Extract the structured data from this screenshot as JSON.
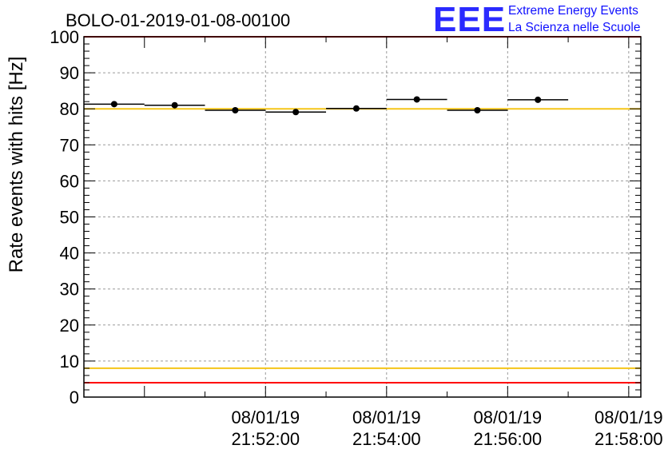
{
  "title": "BOLO-01-2019-01-08-00100",
  "logo": {
    "mark": "EEE",
    "line1": "Extreme Energy Events",
    "line2": "La Scienza nelle Scuole",
    "color": "#1a1aff"
  },
  "chart_data": {
    "type": "scatter",
    "title": "BOLO-01-2019-01-08-00100",
    "xlabel": "",
    "ylabel": "Rate events with hits [Hz]",
    "ylim": [
      0,
      100
    ],
    "y_ticks": [
      0,
      10,
      20,
      30,
      40,
      50,
      60,
      70,
      80,
      90,
      100
    ],
    "x_axis": {
      "type": "time",
      "range_minutes": [
        49.0,
        58.2
      ],
      "ticks": [
        {
          "minute": 52,
          "date": "08/01/19",
          "time": "21:52:00"
        },
        {
          "minute": 54,
          "date": "08/01/19",
          "time": "21:54:00"
        },
        {
          "minute": 56,
          "date": "08/01/19",
          "time": "21:56:00"
        },
        {
          "minute": 58,
          "date": "08/01/19",
          "time": "21:58:00"
        }
      ]
    },
    "grid": true,
    "series": [
      {
        "color": "#000000",
        "points": [
          {
            "x_start": "21:49:00",
            "x_end": "21:50:00",
            "y": 81.3,
            "err": 0.8
          },
          {
            "x_start": "21:50:00",
            "x_end": "21:51:00",
            "y": 81.0,
            "err": 0.8
          },
          {
            "x_start": "21:51:00",
            "x_end": "21:52:00",
            "y": 79.6,
            "err": 0.8
          },
          {
            "x_start": "21:52:00",
            "x_end": "21:53:00",
            "y": 79.1,
            "err": 0.8
          },
          {
            "x_start": "21:53:00",
            "x_end": "21:54:00",
            "y": 80.1,
            "err": 0.8
          },
          {
            "x_start": "21:54:00",
            "x_end": "21:55:00",
            "y": 82.6,
            "err": 0.8
          },
          {
            "x_start": "21:55:00",
            "x_end": "21:56:00",
            "y": 79.6,
            "err": 0.8
          },
          {
            "x_start": "21:56:00",
            "x_end": "21:57:00",
            "y": 82.5,
            "err": 0.8
          }
        ]
      }
    ],
    "reference_lines": [
      {
        "y": 100,
        "color": "#ff0000"
      },
      {
        "y": 80,
        "color": "#f5c518"
      },
      {
        "y": 8,
        "color": "#f5c518"
      },
      {
        "y": 4,
        "color": "#ff0000"
      }
    ]
  }
}
